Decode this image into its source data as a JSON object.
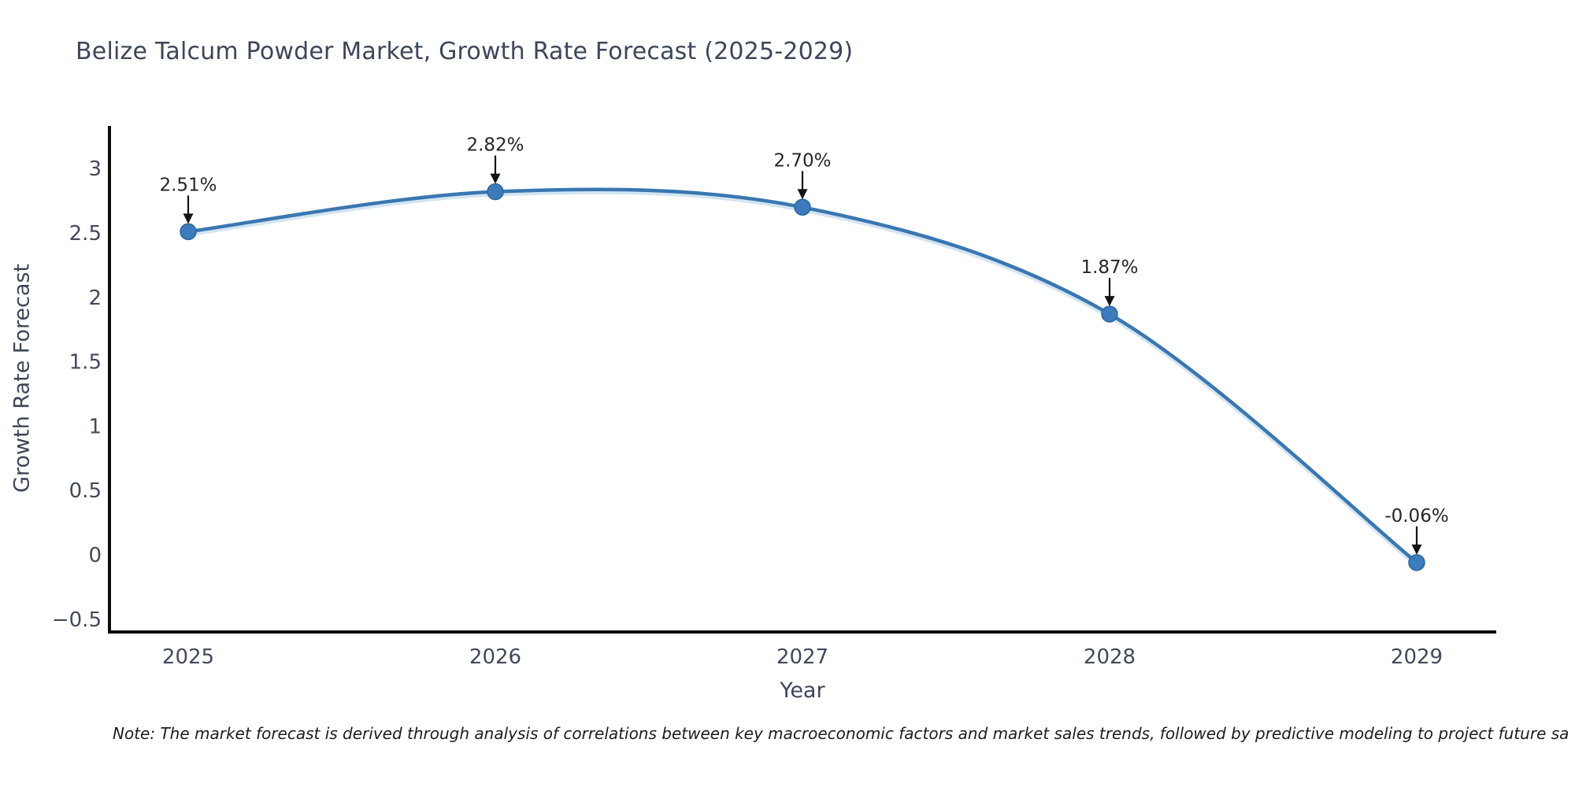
{
  "page": {
    "background_color": "#ffffff"
  },
  "chart_data": {
    "type": "line",
    "title": "Belize Talcum Powder Market, Growth Rate Forecast (2025-2029)",
    "xlabel": "Year",
    "ylabel": "Growth Rate Forecast",
    "categories": [
      "2025",
      "2026",
      "2027",
      "2028",
      "2029"
    ],
    "series": [
      {
        "name": "Growth Rate Forecast",
        "values": [
          2.51,
          2.82,
          2.7,
          1.87,
          -0.06
        ],
        "point_labels": [
          "2.51%",
          "2.82%",
          "2.70%",
          "1.87%",
          "-0.06%"
        ]
      }
    ],
    "yticks": [
      -0.5,
      0,
      0.5,
      1,
      1.5,
      2,
      2.5,
      3
    ],
    "ylim": [
      -0.6,
      3.35
    ],
    "xlim_padding_years": 0.52,
    "grid": false,
    "legend": null,
    "annotations_have_arrows": true,
    "colors": {
      "line": "#3a77b1",
      "line_halo": "#aecfe8",
      "marker_fill": "#3c7cbc",
      "marker_edge": "#2f659c",
      "axis": "#0d0d0d",
      "tick_text": "#42495b",
      "title_text": "#3d4659",
      "annotation_text": "#262626",
      "annotation_arrow": "#141414"
    }
  },
  "note": {
    "text": "Note: The market forecast is derived through analysis of correlations between key macroeconomic factors and market sales trends, followed by predictive modeling to project future sa"
  }
}
